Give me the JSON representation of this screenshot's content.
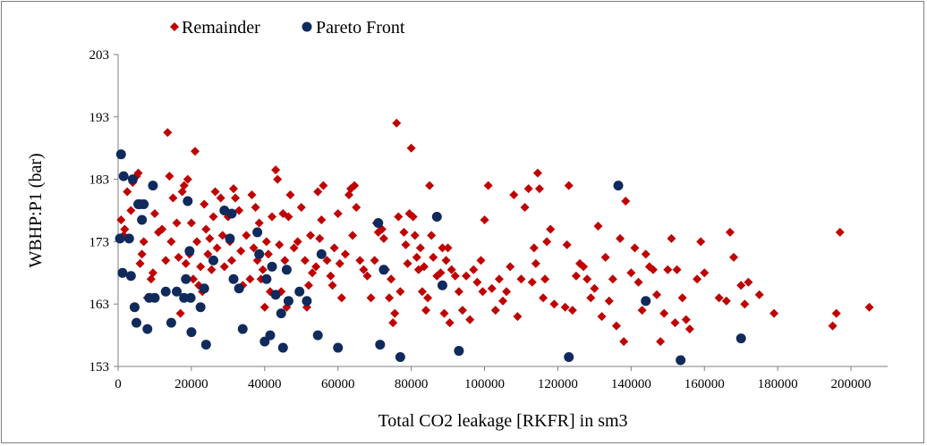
{
  "chart_data": {
    "type": "scatter",
    "xlabel": "Total CO2 leakage [RKFR] in sm3",
    "ylabel": "WBHP:P1 (bar)",
    "xlim": [
      0,
      210000
    ],
    "ylim": [
      153,
      203
    ],
    "x_ticks": [
      "0",
      "20000",
      "40000",
      "60000",
      "80000",
      "100000",
      "120000",
      "140000",
      "160000",
      "180000",
      "200000"
    ],
    "y_ticks": [
      "153",
      "163",
      "173",
      "183",
      "193",
      "203"
    ],
    "grid": false,
    "legend_position": "top-left",
    "colors": {
      "remainder": "#c00000",
      "pareto": "#102a5c"
    },
    "series": [
      {
        "name": "Remainder",
        "marker": "diamond",
        "points": [
          [
            800,
            176.5
          ],
          [
            1500,
            174
          ],
          [
            1800,
            175
          ],
          [
            2500,
            181
          ],
          [
            3500,
            178
          ],
          [
            4000,
            182.5
          ],
          [
            5000,
            183.5
          ],
          [
            5500,
            184
          ],
          [
            6000,
            169.5
          ],
          [
            6500,
            171
          ],
          [
            7000,
            173
          ],
          [
            8000,
            164
          ],
          [
            9000,
            167
          ],
          [
            9500,
            168
          ],
          [
            10000,
            177.5
          ],
          [
            11000,
            174.5
          ],
          [
            12000,
            175
          ],
          [
            13000,
            170
          ],
          [
            13500,
            190.5
          ],
          [
            14000,
            183.5
          ],
          [
            14500,
            173
          ],
          [
            15000,
            180
          ],
          [
            16000,
            176
          ],
          [
            16500,
            170.5
          ],
          [
            17000,
            161.5
          ],
          [
            17500,
            181
          ],
          [
            18000,
            182
          ],
          [
            18500,
            169.5
          ],
          [
            19000,
            183
          ],
          [
            19500,
            171
          ],
          [
            20000,
            176
          ],
          [
            20500,
            167
          ],
          [
            21000,
            187.5
          ],
          [
            21500,
            173
          ],
          [
            22000,
            166
          ],
          [
            22500,
            169
          ],
          [
            23000,
            165
          ],
          [
            23500,
            179
          ],
          [
            24000,
            175
          ],
          [
            24500,
            171
          ],
          [
            25000,
            173.5
          ],
          [
            25500,
            168.5
          ],
          [
            26000,
            177
          ],
          [
            26500,
            181
          ],
          [
            27000,
            172
          ],
          [
            28000,
            180
          ],
          [
            28500,
            174
          ],
          [
            29000,
            169
          ],
          [
            30000,
            177
          ],
          [
            30500,
            173
          ],
          [
            31000,
            170
          ],
          [
            31500,
            181.5
          ],
          [
            32000,
            180
          ],
          [
            33000,
            178
          ],
          [
            33500,
            171.5
          ],
          [
            34000,
            166
          ],
          [
            35000,
            174
          ],
          [
            36000,
            167
          ],
          [
            36500,
            180.5
          ],
          [
            37000,
            172
          ],
          [
            37500,
            178.5
          ],
          [
            38000,
            170
          ],
          [
            38500,
            176
          ],
          [
            39000,
            167
          ],
          [
            39500,
            168.5
          ],
          [
            40000,
            162.5
          ],
          [
            40500,
            173
          ],
          [
            41000,
            171
          ],
          [
            41500,
            165
          ],
          [
            42000,
            177
          ],
          [
            43000,
            184.5
          ],
          [
            43500,
            183
          ],
          [
            44000,
            172.5
          ],
          [
            44500,
            165
          ],
          [
            45000,
            177.5
          ],
          [
            45500,
            170
          ],
          [
            46000,
            162.5
          ],
          [
            46500,
            177
          ],
          [
            47000,
            180.5
          ],
          [
            48000,
            172
          ],
          [
            49000,
            173
          ],
          [
            50000,
            178.5
          ],
          [
            51000,
            170
          ],
          [
            51500,
            162.5
          ],
          [
            52000,
            166
          ],
          [
            52500,
            174
          ],
          [
            53000,
            168
          ],
          [
            54000,
            169
          ],
          [
            54500,
            181
          ],
          [
            55000,
            173.5
          ],
          [
            55500,
            176.5
          ],
          [
            56000,
            182
          ],
          [
            57000,
            170
          ],
          [
            58000,
            167.5
          ],
          [
            58500,
            166
          ],
          [
            59000,
            172
          ],
          [
            60000,
            177.5
          ],
          [
            60500,
            169.5
          ],
          [
            61000,
            164
          ],
          [
            62000,
            171
          ],
          [
            63000,
            180.5
          ],
          [
            63500,
            181.5
          ],
          [
            64000,
            174
          ],
          [
            64500,
            182
          ],
          [
            65000,
            178.5
          ],
          [
            66000,
            170
          ],
          [
            67000,
            168.5
          ],
          [
            68000,
            167.5
          ],
          [
            69000,
            164
          ],
          [
            70000,
            170
          ],
          [
            70500,
            176
          ],
          [
            71000,
            174.5
          ],
          [
            72000,
            175
          ],
          [
            72500,
            173.5
          ],
          [
            73000,
            168.5
          ],
          [
            74000,
            164
          ],
          [
            74500,
            167
          ],
          [
            75000,
            160
          ],
          [
            75500,
            161.5
          ],
          [
            76000,
            192
          ],
          [
            76500,
            177
          ],
          [
            77000,
            165
          ],
          [
            78000,
            174.5
          ],
          [
            78500,
            172.5
          ],
          [
            79000,
            169.5
          ],
          [
            79500,
            177.5
          ],
          [
            80000,
            188
          ],
          [
            80500,
            177
          ],
          [
            81000,
            174
          ],
          [
            81500,
            170.5
          ],
          [
            82000,
            168.5
          ],
          [
            82500,
            172
          ],
          [
            83000,
            165
          ],
          [
            83500,
            169
          ],
          [
            84000,
            162
          ],
          [
            84500,
            164
          ],
          [
            85000,
            182
          ],
          [
            85500,
            174
          ],
          [
            86000,
            170.5
          ],
          [
            87000,
            167.5
          ],
          [
            88000,
            168
          ],
          [
            88500,
            172
          ],
          [
            89000,
            161.5
          ],
          [
            89500,
            170
          ],
          [
            90000,
            172
          ],
          [
            90500,
            160
          ],
          [
            91000,
            168.5
          ],
          [
            92000,
            167.5
          ],
          [
            93000,
            165
          ],
          [
            94000,
            162
          ],
          [
            95000,
            167.5
          ],
          [
            96000,
            160.5
          ],
          [
            97000,
            168.5
          ],
          [
            98000,
            166.5
          ],
          [
            99000,
            170
          ],
          [
            99500,
            165
          ],
          [
            100000,
            176.5
          ],
          [
            101000,
            182
          ],
          [
            102000,
            165.5
          ],
          [
            103000,
            162
          ],
          [
            104000,
            167
          ],
          [
            105000,
            163.5
          ],
          [
            106000,
            165
          ],
          [
            107000,
            169
          ],
          [
            108000,
            180.5
          ],
          [
            109000,
            161
          ],
          [
            110000,
            167
          ],
          [
            111000,
            178.5
          ],
          [
            112000,
            181.5
          ],
          [
            113000,
            166.5
          ],
          [
            113500,
            172
          ],
          [
            114000,
            169.5
          ],
          [
            114500,
            184
          ],
          [
            115000,
            181.5
          ],
          [
            116000,
            164
          ],
          [
            116500,
            167
          ],
          [
            117000,
            173
          ],
          [
            118000,
            175
          ],
          [
            119000,
            163
          ],
          [
            122000,
            162.5
          ],
          [
            122500,
            172.5
          ],
          [
            123000,
            182
          ],
          [
            124000,
            162
          ],
          [
            125000,
            167.5
          ],
          [
            126000,
            169.5
          ],
          [
            127000,
            169
          ],
          [
            128000,
            167
          ],
          [
            129000,
            164
          ],
          [
            130000,
            165.5
          ],
          [
            131000,
            175.5
          ],
          [
            132000,
            161
          ],
          [
            133000,
            170.5
          ],
          [
            134000,
            163.5
          ],
          [
            135000,
            167
          ],
          [
            136000,
            159.5
          ],
          [
            137000,
            173.5
          ],
          [
            138000,
            157
          ],
          [
            138500,
            179.5
          ],
          [
            140000,
            168
          ],
          [
            141000,
            172
          ],
          [
            142000,
            166.5
          ],
          [
            143000,
            162
          ],
          [
            144000,
            171
          ],
          [
            145000,
            169
          ],
          [
            146000,
            168.5
          ],
          [
            147000,
            164.5
          ],
          [
            148000,
            157
          ],
          [
            149000,
            161.5
          ],
          [
            150000,
            168.5
          ],
          [
            151000,
            173.5
          ],
          [
            152000,
            160
          ],
          [
            152500,
            168.5
          ],
          [
            154000,
            164
          ],
          [
            155000,
            160.5
          ],
          [
            156000,
            159
          ],
          [
            158000,
            167
          ],
          [
            159000,
            173
          ],
          [
            160000,
            168
          ],
          [
            164000,
            164
          ],
          [
            166000,
            163.5
          ],
          [
            167000,
            174.5
          ],
          [
            168000,
            170.5
          ],
          [
            170000,
            166
          ],
          [
            171000,
            163
          ],
          [
            172000,
            166.5
          ],
          [
            175000,
            164.5
          ],
          [
            179000,
            161.5
          ],
          [
            195000,
            159.5
          ],
          [
            196000,
            161.5
          ],
          [
            197000,
            174.5
          ],
          [
            205000,
            162.5
          ]
        ]
      },
      {
        "name": "Pareto Front",
        "marker": "circle",
        "points": [
          [
            500,
            173.5
          ],
          [
            800,
            187
          ],
          [
            1200,
            168
          ],
          [
            1500,
            183.5
          ],
          [
            3000,
            173.5
          ],
          [
            3500,
            167.5
          ],
          [
            4000,
            183
          ],
          [
            4500,
            162.5
          ],
          [
            5000,
            160
          ],
          [
            5500,
            179
          ],
          [
            6000,
            179
          ],
          [
            6500,
            176.5
          ],
          [
            7000,
            179
          ],
          [
            8000,
            159
          ],
          [
            8500,
            164
          ],
          [
            9500,
            182
          ],
          [
            10000,
            164
          ],
          [
            13000,
            165
          ],
          [
            14500,
            160
          ],
          [
            16000,
            165
          ],
          [
            18000,
            164
          ],
          [
            18500,
            167
          ],
          [
            19000,
            179.5
          ],
          [
            19500,
            171.5
          ],
          [
            19800,
            164
          ],
          [
            20000,
            158.5
          ],
          [
            22500,
            162.5
          ],
          [
            23500,
            165.5
          ],
          [
            24000,
            156.5
          ],
          [
            26000,
            170
          ],
          [
            29000,
            178
          ],
          [
            30500,
            173.5
          ],
          [
            31000,
            177.5
          ],
          [
            31500,
            167
          ],
          [
            33000,
            165.5
          ],
          [
            34000,
            159
          ],
          [
            38000,
            174.5
          ],
          [
            38500,
            171
          ],
          [
            40000,
            157
          ],
          [
            40500,
            167
          ],
          [
            41500,
            158
          ],
          [
            42000,
            169
          ],
          [
            43000,
            164.5
          ],
          [
            44500,
            161.5
          ],
          [
            45000,
            156
          ],
          [
            46000,
            168.5
          ],
          [
            46500,
            163.5
          ],
          [
            49500,
            165
          ],
          [
            51500,
            163.5
          ],
          [
            54500,
            158
          ],
          [
            55500,
            171
          ],
          [
            60000,
            156
          ],
          [
            71000,
            176
          ],
          [
            71500,
            156.5
          ],
          [
            72500,
            168.5
          ],
          [
            77000,
            154.5
          ],
          [
            87000,
            177
          ],
          [
            88500,
            166
          ],
          [
            93000,
            155.5
          ],
          [
            123000,
            154.5
          ],
          [
            136500,
            182
          ],
          [
            144000,
            163.5
          ],
          [
            153500,
            154
          ],
          [
            170000,
            157.5
          ]
        ]
      }
    ]
  }
}
